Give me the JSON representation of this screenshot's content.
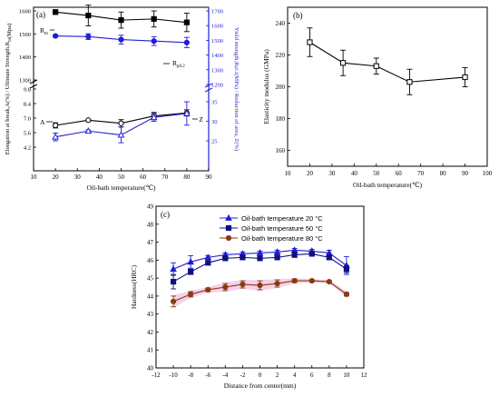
{
  "colors": {
    "black": "#000000",
    "blue": "#1f1fd6",
    "navy": "#101080",
    "brown": "#8b3a0e",
    "pink_band": "#f3c6e6"
  },
  "chart_data": [
    {
      "panel_label": "(a)",
      "type": "line",
      "xlabel": "Oil-bath temperature(℃)",
      "x_ticks": [
        10,
        20,
        30,
        40,
        50,
        60,
        70,
        80,
        90
      ],
      "xlim": [
        10,
        90
      ],
      "upper": {
        "left_axis_label": "Ultimate Strength,R",
        "left_axis_sub": "m",
        "left_axis_unit": "(Mpa)",
        "left_ticks": [
          "1300",
          "1400",
          "1500",
          "1600"
        ],
        "right_axis_label": "Yield strength,R",
        "right_axis_sub": "p0.2",
        "right_axis_unit": "(MPa)",
        "right_ticks": [
          "1200",
          "1300",
          "1400",
          "1500",
          "1600",
          "1700"
        ],
        "series": [
          {
            "name": "R",
            "name_sub": "m",
            "axis": "left",
            "color": "#000000",
            "marker": "square-filled",
            "x": [
              20,
              35,
              50,
              65,
              80
            ],
            "values": [
              1595,
              1580,
              1560,
              1565,
              1550
            ],
            "errors": [
              10,
              45,
              35,
              35,
              40
            ]
          },
          {
            "name": "R",
            "name_sub": "p0.2",
            "axis": "right",
            "color": "#1f1fd6",
            "marker": "circle-filled",
            "x": [
              20,
              35,
              50,
              65,
              80
            ],
            "values": [
              1530,
              1525,
              1505,
              1495,
              1485
            ],
            "errors": [
              8,
              20,
              30,
              30,
              35
            ]
          }
        ]
      },
      "lower": {
        "left_axis_label": "Elongation at break,A(%) /",
        "left_ticks": [
          "4.2",
          "5.6",
          "7.0",
          "8.4",
          "9.8"
        ],
        "right_axis_label": "Reduction of area, Z(%)",
        "right_ticks": [
          "25",
          "30",
          "35"
        ],
        "series": [
          {
            "name": "A",
            "axis": "left",
            "color": "#000000",
            "marker": "circle-open",
            "x": [
              20,
              35,
              50,
              65,
              80
            ],
            "values": [
              6.3,
              6.8,
              6.5,
              7.2,
              7.5
            ],
            "errors": [
              0.25,
              0.05,
              0.35,
              0.35,
              0.3
            ]
          },
          {
            "name": "Z",
            "axis": "right",
            "color": "#1f1fd6",
            "marker": "triangle-open",
            "x": [
              20,
              35,
              50,
              65,
              80
            ],
            "values": [
              26,
              27.5,
              26.5,
              31,
              32
            ],
            "errors": [
              1.0,
              0.3,
              2.0,
              1.0,
              3.0
            ]
          }
        ]
      }
    },
    {
      "panel_label": "(b)",
      "type": "line",
      "xlabel": "Oil-bath temperature(℃)",
      "ylabel": "Elasticity modulus (GMPa)",
      "x_ticks": [
        10,
        20,
        30,
        40,
        50,
        60,
        70,
        80,
        90,
        100
      ],
      "y_ticks": [
        160,
        180,
        200,
        220,
        240
      ],
      "xlim": [
        10,
        100
      ],
      "ylim": [
        150,
        250
      ],
      "series": [
        {
          "color": "#000000",
          "marker": "square-open",
          "x": [
            20,
            35,
            50,
            65,
            90
          ],
          "values": [
            228,
            215,
            213,
            203,
            206
          ],
          "errors": [
            9,
            8,
            5,
            8,
            6
          ]
        }
      ]
    },
    {
      "panel_label": "(c)",
      "type": "line",
      "xlabel": "Distance from center(mm)",
      "ylabel": "Hardness(HRC)",
      "x_ticks": [
        -12,
        -10,
        -8,
        -6,
        -4,
        -2,
        0,
        2,
        4,
        6,
        8,
        10,
        12
      ],
      "y_ticks": [
        40,
        41,
        42,
        43,
        44,
        45,
        46,
        47,
        48,
        49
      ],
      "xlim": [
        -12,
        12
      ],
      "ylim": [
        40,
        49
      ],
      "series": [
        {
          "name": "Oil-bath temperature 20 °C",
          "color": "#1f1fd6",
          "marker": "triangle-filled",
          "x": [
            -10,
            -8,
            -6,
            -4,
            -2,
            0,
            2,
            4,
            6,
            8,
            10
          ],
          "values": [
            45.5,
            45.9,
            46.15,
            46.3,
            46.35,
            46.4,
            46.45,
            46.55,
            46.5,
            46.4,
            45.7
          ],
          "errors": [
            0.35,
            0.35,
            0.1,
            0.1,
            0.1,
            0.1,
            0.1,
            0.1,
            0.1,
            0.15,
            0.5
          ]
        },
        {
          "name": "Oil-bath temperature 50 °C",
          "color": "#101080",
          "marker": "square-filled",
          "x": [
            -10,
            -8,
            -6,
            -4,
            -2,
            0,
            2,
            4,
            6,
            8,
            10
          ],
          "values": [
            44.8,
            45.35,
            45.85,
            46.1,
            46.15,
            46.1,
            46.15,
            46.3,
            46.35,
            46.15,
            45.5
          ],
          "errors": [
            0.4,
            0.15,
            0.1,
            0.1,
            0.1,
            0.1,
            0.1,
            0.15,
            0.1,
            0.1,
            0.2
          ]
        },
        {
          "name": "Oil-bath temperature 80 °C",
          "color": "#8b3a0e",
          "marker": "circle-filled",
          "x": [
            -10,
            -8,
            -6,
            -4,
            -2,
            0,
            2,
            4,
            6,
            8,
            10
          ],
          "values": [
            43.7,
            44.1,
            44.35,
            44.5,
            44.65,
            44.6,
            44.7,
            44.85,
            44.85,
            44.8,
            44.1
          ],
          "errors": [
            0.3,
            0.15,
            0.1,
            0.2,
            0.2,
            0.25,
            0.2,
            0.1,
            0.05,
            0.05,
            0.1
          ]
        }
      ]
    }
  ]
}
